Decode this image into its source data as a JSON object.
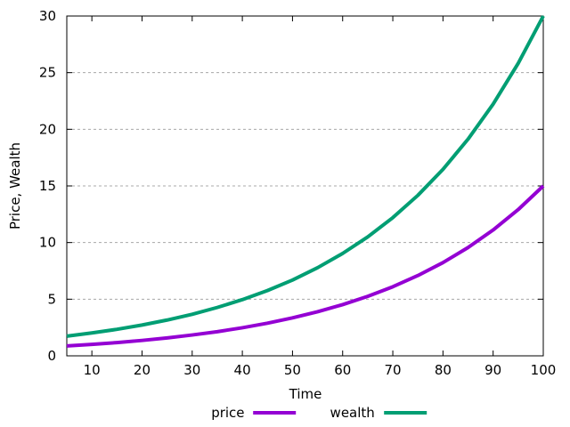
{
  "chart_data": {
    "type": "line",
    "title": "",
    "xlabel": "Time",
    "ylabel": "Price, Wealth",
    "xlim": [
      5,
      100
    ],
    "ylim": [
      0,
      30
    ],
    "x_ticks": [
      10,
      20,
      30,
      40,
      50,
      60,
      70,
      80,
      90,
      100
    ],
    "y_ticks": [
      0,
      5,
      10,
      15,
      20,
      25,
      30
    ],
    "grid": "horizontal-dashed",
    "grid_color": "#a8a8a8",
    "border_color": "#000000",
    "legend_position": "bottom-center",
    "x": [
      5,
      10,
      15,
      20,
      25,
      30,
      35,
      40,
      45,
      50,
      55,
      60,
      65,
      70,
      75,
      80,
      85,
      90,
      95,
      100
    ],
    "series": [
      {
        "name": "price",
        "color": "#9400d3",
        "values": [
          0.87,
          1.01,
          1.17,
          1.36,
          1.58,
          1.84,
          2.13,
          2.48,
          2.88,
          3.35,
          3.89,
          4.52,
          5.25,
          6.1,
          7.09,
          8.23,
          9.56,
          11.11,
          12.91,
          15.0
        ]
      },
      {
        "name": "wealth",
        "color": "#009e73",
        "values": [
          1.74,
          2.02,
          2.34,
          2.72,
          3.16,
          3.67,
          4.27,
          4.96,
          5.76,
          6.69,
          7.78,
          9.04,
          10.5,
          12.2,
          14.17,
          16.46,
          19.13,
          22.22,
          25.82,
          30.0
        ]
      }
    ]
  }
}
